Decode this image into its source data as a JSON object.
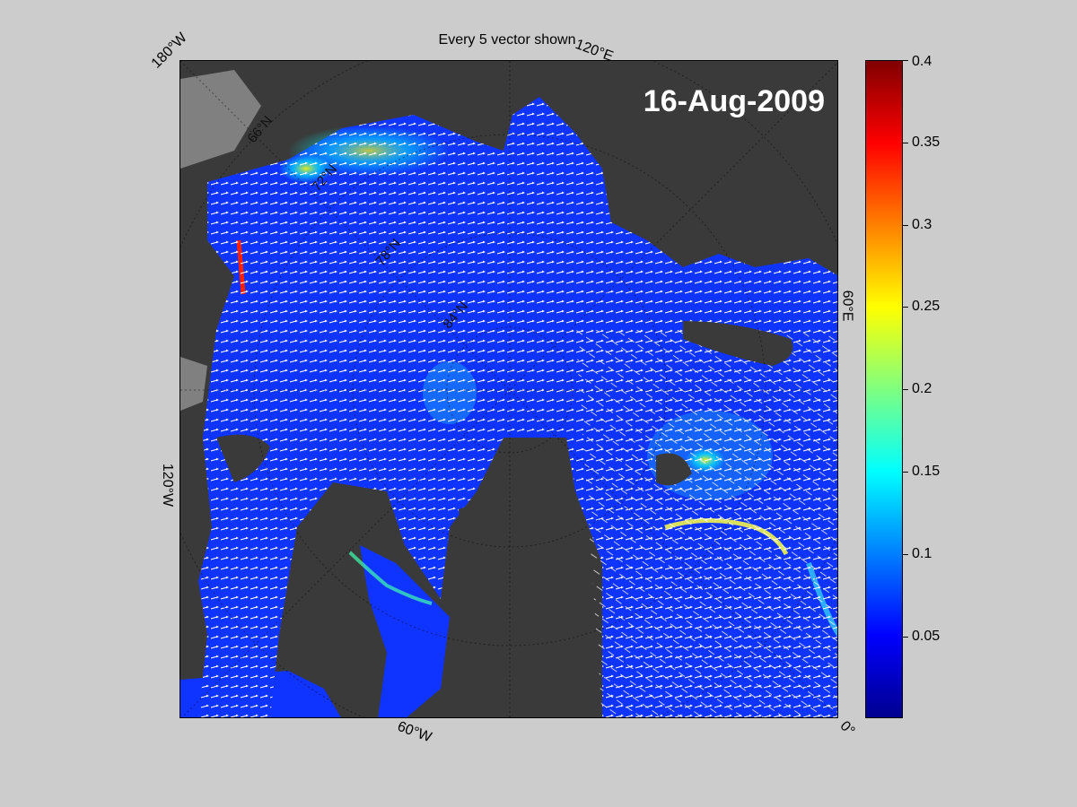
{
  "title": "Every 5 vector shown",
  "date": "16-Aug-2009",
  "lon_labels": [
    "180°W",
    "120°E",
    "60°E",
    "0°",
    "60°W",
    "120°W"
  ],
  "lat_labels": [
    "66°N",
    "72°N",
    "78°N",
    "84°N"
  ],
  "colorbar": {
    "ticks": [
      "0.4",
      "0.35",
      "0.3",
      "0.25",
      "0.2",
      "0.15",
      "0.1",
      "0.05"
    ],
    "min": 0,
    "max": 0.4,
    "colormap": "jet"
  },
  "colors": {
    "land": "#3a3a3a",
    "ice_free_land": "#808080",
    "ocean_low": "#1030ff",
    "vector": "#ffffff",
    "background": "#cccccc"
  }
}
